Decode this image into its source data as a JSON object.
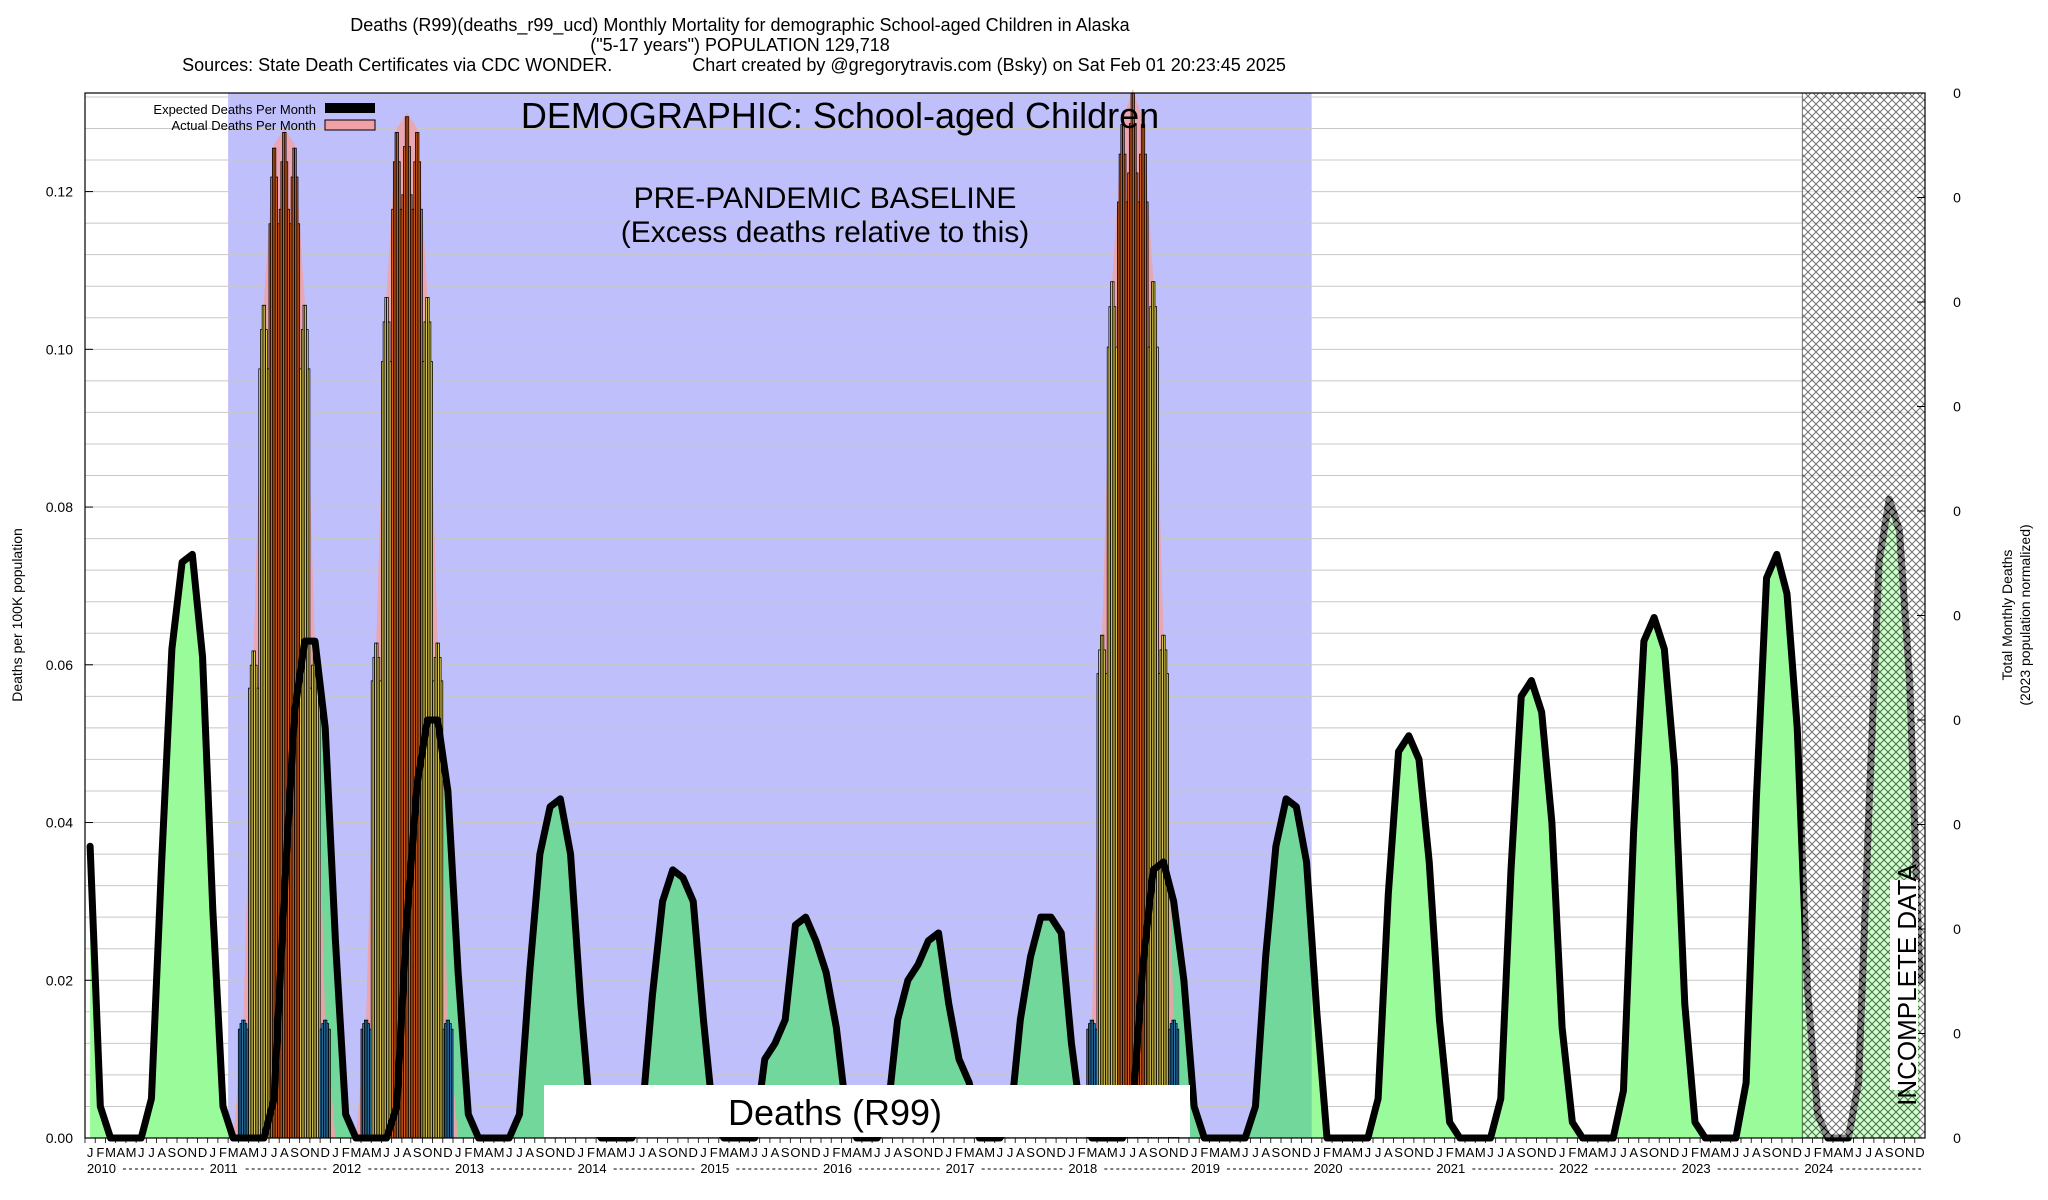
{
  "title_lines": [
    "Deaths (R99)(deaths_r99_ucd) Monthly Mortality for demographic School-aged Children in Alaska",
    "(\"5-17 years\") POPULATION 129,718",
    "Sources: State Death Certificates via CDC WONDER.                Chart created by @gregorytravis.com (Bsky) on Sat Feb 01 20:23:45 2025"
  ],
  "annotations": {
    "demographic": "DEMOGRAPHIC: School-aged Children",
    "baseline_line1": "PRE-PANDEMIC BASELINE",
    "baseline_line2": "(Excess deaths relative to this)",
    "cause_box": "Deaths (R99)",
    "incomplete": "INCOMPLETE DATA"
  },
  "legend": {
    "expected": "Expected Deaths Per Month",
    "actual": "Actual Deaths Per Month"
  },
  "colors": {
    "baseline_region": "#bfbffb",
    "expected_fill_outside": "#99fb99",
    "expected_fill_inside": "#72d79a",
    "expected_line": "#000000",
    "actual_area": "#f1a1a6",
    "bar_low": "#2e86c1",
    "bar_mid": "#f8e45c",
    "bar_high": "#fa6c1e",
    "incomplete_hatch": "#000000"
  },
  "chart_data": {
    "type": "bar",
    "ylabel_left": "Deaths per 100K population",
    "ylabel_right_line1": "Total Monthly Deaths",
    "ylabel_right_line2": "(2023 population normalized)",
    "ylim": [
      0,
      0.1325
    ],
    "yticks": [
      0.0,
      0.02,
      0.04,
      0.06,
      0.08,
      0.1,
      0.12
    ],
    "ytick_labels": [
      "0.00",
      "0.02",
      "0.04",
      "0.06",
      "0.08",
      "0.10",
      "0.12"
    ],
    "right_tick_labels": [
      "0",
      "0",
      "0",
      "0",
      "0",
      "0",
      "0",
      "0",
      "0",
      "0",
      "0"
    ],
    "month_letters": [
      "J",
      "F",
      "M",
      "A",
      "M",
      "J",
      "J",
      "A",
      "S",
      "O",
      "N",
      "D"
    ],
    "years": [
      "2010",
      "2011",
      "2012",
      "2013",
      "2014",
      "2015",
      "2016",
      "2017",
      "2018",
      "2019",
      "2020",
      "2021",
      "2022",
      "2023",
      "2024"
    ],
    "baseline_period": [
      "2011-03",
      "2019-12"
    ],
    "incomplete_period": [
      "2024-01",
      "2024-12"
    ],
    "grid": true,
    "legend_position": "top-left",
    "series": [
      {
        "name": "Expected Deaths Per Month",
        "kind": "line",
        "values": [
          0.037,
          0.004,
          0,
          0,
          0,
          0,
          0.005,
          0.035,
          0.062,
          0.073,
          0.074,
          0.061,
          0.029,
          0.004,
          0,
          0,
          0,
          0,
          0.005,
          0.031,
          0.054,
          0.063,
          0.063,
          0.052,
          0.025,
          0.003,
          0,
          0,
          0,
          0,
          0.004,
          0.028,
          0.045,
          0.053,
          0.053,
          0.044,
          0.021,
          0.003,
          0,
          0,
          0,
          0,
          0.003,
          0.021,
          0.036,
          0.042,
          0.043,
          0.036,
          0.017,
          0.002,
          0,
          0,
          0,
          0,
          0.003,
          0.018,
          0.03,
          0.034,
          0.033,
          0.03,
          0.015,
          0.002,
          0,
          0,
          0,
          0,
          0.01,
          0.012,
          0.015,
          0.027,
          0.028,
          0.025,
          0.021,
          0.014,
          0.003,
          0,
          0,
          0,
          0.003,
          0.015,
          0.02,
          0.022,
          0.025,
          0.026,
          0.017,
          0.01,
          0.007,
          0,
          0,
          0,
          0.002,
          0.015,
          0.023,
          0.028,
          0.028,
          0.026,
          0.012,
          0.002,
          0,
          0,
          0,
          0,
          0.004,
          0.022,
          0.034,
          0.035,
          0.03,
          0.02,
          0.004,
          0,
          0,
          0,
          0,
          0,
          0.004,
          0.023,
          0.037,
          0.043,
          0.042,
          0.035,
          0.016,
          0.0,
          0,
          0,
          0,
          0,
          0.005,
          0.031,
          0.049,
          0.051,
          0.048,
          0.035,
          0.015,
          0.002,
          0,
          0,
          0,
          0,
          0.005,
          0.034,
          0.056,
          0.058,
          0.054,
          0.04,
          0.014,
          0.002,
          0,
          0,
          0,
          0,
          0.006,
          0.039,
          0.063,
          0.066,
          0.062,
          0.047,
          0.017,
          0.002,
          0,
          0,
          0,
          0,
          0.007,
          0.043,
          0.071,
          0.074,
          0.069,
          0.052,
          0.019,
          0.003,
          0,
          0,
          0,
          0.007,
          0.041,
          0.073,
          0.081,
          0.077,
          0.058,
          0.02
        ]
      },
      {
        "name": "Actual Deaths Per Month",
        "kind": "bar",
        "bars": [
          {
            "month": "2011-04",
            "value": 0.015
          },
          {
            "month": "2011-05",
            "value": 0.062
          },
          {
            "month": "2011-06",
            "value": 0.106
          },
          {
            "month": "2011-07",
            "value": 0.126
          },
          {
            "month": "2011-08",
            "value": 0.128
          },
          {
            "month": "2011-09",
            "value": 0.126
          },
          {
            "month": "2011-10",
            "value": 0.106
          },
          {
            "month": "2011-11",
            "value": 0.062
          },
          {
            "month": "2011-12",
            "value": 0.015
          },
          {
            "month": "2012-04",
            "value": 0.015
          },
          {
            "month": "2012-05",
            "value": 0.063
          },
          {
            "month": "2012-06",
            "value": 0.107
          },
          {
            "month": "2012-07",
            "value": 0.128
          },
          {
            "month": "2012-08",
            "value": 0.13
          },
          {
            "month": "2012-09",
            "value": 0.128
          },
          {
            "month": "2012-10",
            "value": 0.107
          },
          {
            "month": "2012-11",
            "value": 0.063
          },
          {
            "month": "2012-12",
            "value": 0.015
          },
          {
            "month": "2018-03",
            "value": 0.015
          },
          {
            "month": "2018-04",
            "value": 0.064
          },
          {
            "month": "2018-05",
            "value": 0.109
          },
          {
            "month": "2018-06",
            "value": 0.129
          },
          {
            "month": "2018-07",
            "value": 0.133
          },
          {
            "month": "2018-08",
            "value": 0.129
          },
          {
            "month": "2018-09",
            "value": 0.109
          },
          {
            "month": "2018-10",
            "value": 0.064
          },
          {
            "month": "2018-11",
            "value": 0.015
          }
        ]
      }
    ]
  }
}
